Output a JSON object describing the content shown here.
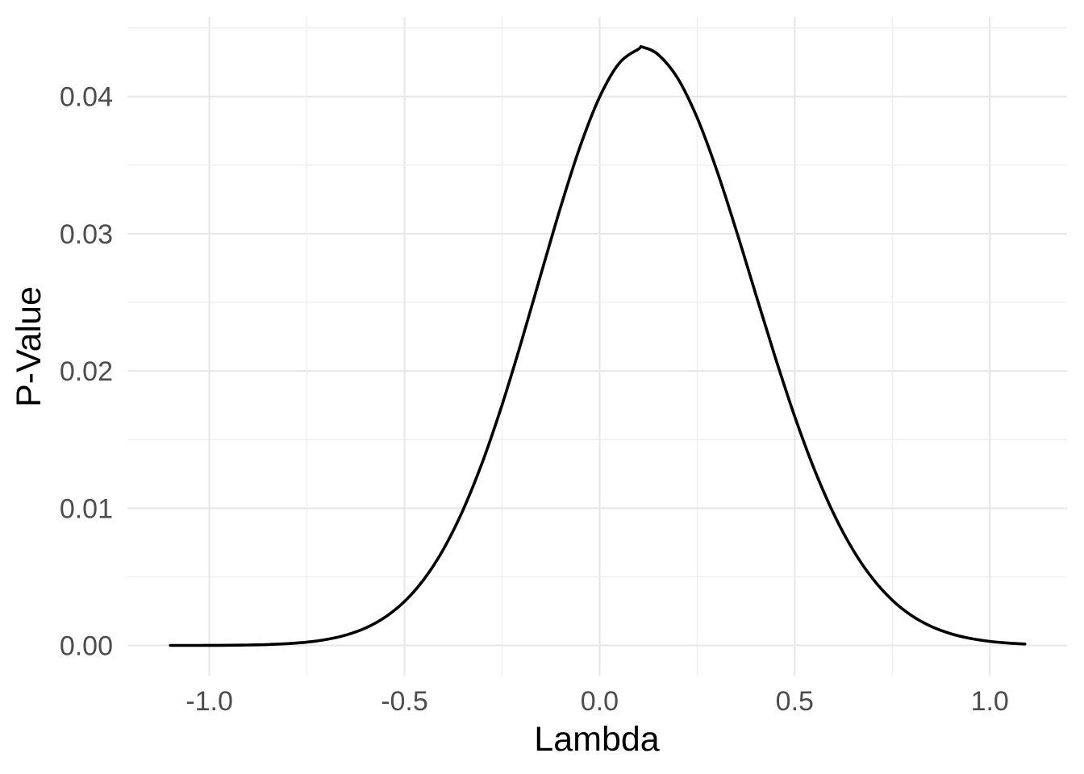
{
  "chart_data": {
    "type": "line",
    "title": "",
    "xlabel": "Lambda",
    "ylabel": "P-Value",
    "x_tick_values": [
      -1.0,
      -0.5,
      0.0,
      0.5,
      1.0
    ],
    "x_tick_labels": [
      "-1.0",
      "-0.5",
      "0.0",
      "0.5",
      "1.0"
    ],
    "y_tick_values": [
      0.0,
      0.01,
      0.02,
      0.03,
      0.04
    ],
    "y_tick_labels": [
      "0.00",
      "0.01",
      "0.02",
      "0.03",
      "0.04"
    ],
    "x_minor_tick_values": [
      -0.75,
      -0.25,
      0.25,
      0.75
    ],
    "y_minor_tick_values": [
      0.005,
      0.015,
      0.025,
      0.035,
      0.045
    ],
    "xlim": [
      -1.21,
      1.198
    ],
    "ylim": [
      -0.0022,
      0.0458
    ],
    "grid": "major-and-minor",
    "legend_position": "none",
    "peak": {
      "x": 0.11,
      "y": 0.0436
    },
    "series": [
      {
        "name": "p-value-curve",
        "points": [
          [
            -1.1,
            2e-06
          ],
          [
            -1.05,
            4e-06
          ],
          [
            -1.0,
            8e-06
          ],
          [
            -0.95,
            1.6e-05
          ],
          [
            -0.9,
            3.4e-05
          ],
          [
            -0.85,
            6.8e-05
          ],
          [
            -0.8,
            0.000131
          ],
          [
            -0.75,
            0.000243
          ],
          [
            -0.7,
            0.000436
          ],
          [
            -0.65,
            0.000758
          ],
          [
            -0.6,
            0.001269
          ],
          [
            -0.55,
            0.002051
          ],
          [
            -0.5,
            0.003202
          ],
          [
            -0.45,
            0.004824
          ],
          [
            -0.4,
            0.007021
          ],
          [
            -0.35,
            0.009866
          ],
          [
            -0.3,
            0.013381
          ],
          [
            -0.25,
            0.017531
          ],
          [
            -0.2,
            0.022172
          ],
          [
            -0.15,
            0.027079
          ],
          [
            -0.1,
            0.031929
          ],
          [
            -0.05,
            0.036353
          ],
          [
            0.0,
            0.039959
          ],
          [
            0.05,
            0.042417
          ],
          [
            0.1,
            0.04347
          ],
          [
            0.11,
            0.0436
          ],
          [
            0.15,
            0.043064
          ],
          [
            0.2,
            0.041338
          ],
          [
            0.25,
            0.03845
          ],
          [
            0.3,
            0.034656
          ],
          [
            0.35,
            0.030267
          ],
          [
            0.4,
            0.025617
          ],
          [
            0.45,
            0.021006
          ],
          [
            0.5,
            0.016691
          ],
          [
            0.55,
            0.012854
          ],
          [
            0.6,
            0.009592
          ],
          [
            0.65,
            0.006934
          ],
          [
            0.7,
            0.004859
          ],
          [
            0.75,
            0.003302
          ],
          [
            0.8,
            0.00217
          ],
          [
            0.85,
            0.001384
          ],
          [
            0.9,
            0.000854
          ],
          [
            0.95,
            0.000511
          ],
          [
            1.0,
            0.000296
          ],
          [
            1.05,
            0.000166
          ],
          [
            1.09,
            0.000103
          ]
        ]
      }
    ],
    "colors": {
      "background": "#ffffff",
      "grid_major": "#e8e8e8",
      "grid_minor": "#efefef",
      "curve": "#000000",
      "tick_label": "#4d4d4d",
      "axis_title": "#000000"
    }
  }
}
